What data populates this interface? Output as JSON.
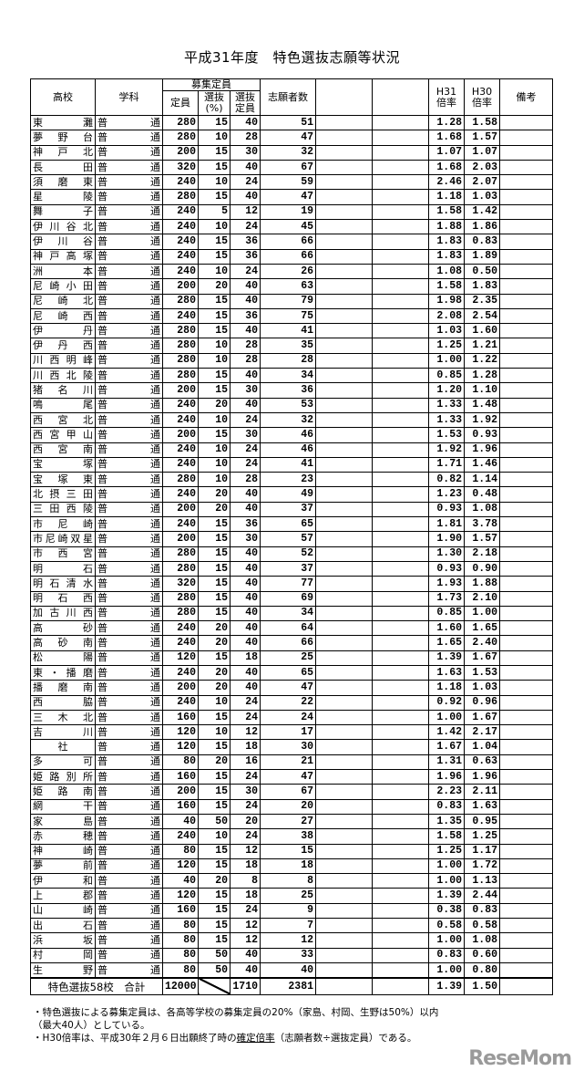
{
  "title": "平成31年度　特色選抜志願等状況",
  "headers": {
    "school": "高校",
    "subject": "学科",
    "recruit_group": "募集定員",
    "capacity": "定員",
    "select_pct": "選抜\n(%)",
    "select_cap": "選抜\n定員",
    "applicants": "志願者数",
    "h31": "H31\n倍率",
    "h30": "H30\n倍率",
    "remarks": "備考"
  },
  "rows": [
    [
      "東灘",
      "普通",
      280,
      15,
      40,
      51,
      "1.28",
      "1.58"
    ],
    [
      "夢野台",
      "普通",
      280,
      10,
      28,
      47,
      "1.68",
      "1.57"
    ],
    [
      "神戸北",
      "普通",
      200,
      15,
      30,
      32,
      "1.07",
      "1.07"
    ],
    [
      "長田",
      "普通",
      320,
      15,
      40,
      67,
      "1.68",
      "2.03"
    ],
    [
      "須磨東",
      "普通",
      240,
      10,
      24,
      59,
      "2.46",
      "2.07"
    ],
    [
      "星陵",
      "普通",
      280,
      15,
      40,
      47,
      "1.18",
      "1.03"
    ],
    [
      "舞子",
      "普通",
      240,
      5,
      12,
      19,
      "1.58",
      "1.42"
    ],
    [
      "伊川谷北",
      "普通",
      240,
      10,
      24,
      45,
      "1.88",
      "1.86"
    ],
    [
      "伊川谷",
      "普通",
      240,
      15,
      36,
      66,
      "1.83",
      "0.83"
    ],
    [
      "神戸高塚",
      "普通",
      240,
      15,
      36,
      66,
      "1.83",
      "1.89"
    ],
    [
      "洲本",
      "普通",
      240,
      10,
      24,
      26,
      "1.08",
      "0.50"
    ],
    [
      "尼崎小田",
      "普通",
      200,
      20,
      40,
      63,
      "1.58",
      "1.83"
    ],
    [
      "尼崎北",
      "普通",
      280,
      15,
      40,
      79,
      "1.98",
      "2.35"
    ],
    [
      "尼崎西",
      "普通",
      240,
      15,
      36,
      75,
      "2.08",
      "2.54"
    ],
    [
      "伊丹",
      "普通",
      280,
      15,
      40,
      41,
      "1.03",
      "1.60"
    ],
    [
      "伊丹西",
      "普通",
      280,
      10,
      28,
      35,
      "1.25",
      "1.21"
    ],
    [
      "川西明峰",
      "普通",
      280,
      10,
      28,
      28,
      "1.00",
      "1.22"
    ],
    [
      "川西北陵",
      "普通",
      280,
      15,
      40,
      34,
      "0.85",
      "1.28"
    ],
    [
      "猪名川",
      "普通",
      200,
      15,
      30,
      36,
      "1.20",
      "1.10"
    ],
    [
      "鳴尾",
      "普通",
      240,
      20,
      40,
      53,
      "1.33",
      "1.48"
    ],
    [
      "西宮北",
      "普通",
      240,
      10,
      24,
      32,
      "1.33",
      "1.92"
    ],
    [
      "西宮甲山",
      "普通",
      200,
      15,
      30,
      46,
      "1.53",
      "0.93"
    ],
    [
      "西宮南",
      "普通",
      240,
      10,
      24,
      46,
      "1.92",
      "1.96"
    ],
    [
      "宝塚",
      "普通",
      240,
      10,
      24,
      41,
      "1.71",
      "1.46"
    ],
    [
      "宝塚東",
      "普通",
      280,
      10,
      28,
      23,
      "0.82",
      "1.14"
    ],
    [
      "北摂三田",
      "普通",
      240,
      20,
      40,
      49,
      "1.23",
      "0.48"
    ],
    [
      "三田西陵",
      "普通",
      200,
      20,
      40,
      37,
      "0.93",
      "1.08"
    ],
    [
      "市尼崎",
      "普通",
      240,
      15,
      36,
      65,
      "1.81",
      "3.78"
    ],
    [
      "市尼崎双星",
      "普通",
      200,
      15,
      30,
      57,
      "1.90",
      "1.57"
    ],
    [
      "市西宮",
      "普通",
      280,
      15,
      40,
      52,
      "1.30",
      "2.18"
    ],
    [
      "明石",
      "普通",
      280,
      15,
      40,
      37,
      "0.93",
      "0.90"
    ],
    [
      "明石清水",
      "普通",
      320,
      15,
      40,
      77,
      "1.93",
      "1.88"
    ],
    [
      "明石西",
      "普通",
      280,
      15,
      40,
      69,
      "1.73",
      "2.10"
    ],
    [
      "加古川西",
      "普通",
      280,
      15,
      40,
      34,
      "0.85",
      "1.00"
    ],
    [
      "高砂",
      "普通",
      240,
      20,
      40,
      64,
      "1.60",
      "1.65"
    ],
    [
      "高砂南",
      "普通",
      240,
      20,
      40,
      66,
      "1.65",
      "2.40"
    ],
    [
      "松陽",
      "普通",
      120,
      15,
      18,
      25,
      "1.39",
      "1.67"
    ],
    [
      "東・播磨",
      "普通",
      240,
      20,
      40,
      65,
      "1.63",
      "1.53"
    ],
    [
      "播磨南",
      "普通",
      200,
      20,
      40,
      47,
      "1.18",
      "1.03"
    ],
    [
      "西脇",
      "普通",
      240,
      10,
      24,
      22,
      "0.92",
      "0.96"
    ],
    [
      "三木北",
      "普通",
      160,
      15,
      24,
      24,
      "1.00",
      "1.67"
    ],
    [
      "吉川",
      "普通",
      120,
      10,
      12,
      17,
      "1.42",
      "2.17"
    ],
    [
      "社",
      "普通",
      120,
      15,
      18,
      30,
      "1.67",
      "1.04"
    ],
    [
      "多可",
      "普通",
      80,
      20,
      16,
      21,
      "1.31",
      "0.63"
    ],
    [
      "姫路別所",
      "普通",
      160,
      15,
      24,
      47,
      "1.96",
      "1.96"
    ],
    [
      "姫路南",
      "普通",
      200,
      15,
      30,
      67,
      "2.23",
      "2.11"
    ],
    [
      "網干",
      "普通",
      160,
      15,
      24,
      20,
      "0.83",
      "1.63"
    ],
    [
      "家島",
      "普通",
      40,
      50,
      20,
      27,
      "1.35",
      "0.95"
    ],
    [
      "赤穂",
      "普通",
      240,
      10,
      24,
      38,
      "1.58",
      "1.25"
    ],
    [
      "神崎",
      "普通",
      80,
      15,
      12,
      15,
      "1.25",
      "1.17"
    ],
    [
      "夢前",
      "普通",
      120,
      15,
      18,
      18,
      "1.00",
      "1.72"
    ],
    [
      "伊和",
      "普通",
      40,
      20,
      8,
      8,
      "1.00",
      "1.13"
    ],
    [
      "上郡",
      "普通",
      120,
      15,
      18,
      25,
      "1.39",
      "2.44"
    ],
    [
      "山崎",
      "普通",
      160,
      15,
      24,
      9,
      "0.38",
      "0.83"
    ],
    [
      "出石",
      "普通",
      80,
      15,
      12,
      7,
      "0.58",
      "0.58"
    ],
    [
      "浜坂",
      "普通",
      80,
      15,
      12,
      12,
      "1.00",
      "1.08"
    ],
    [
      "村岡",
      "普通",
      80,
      50,
      40,
      33,
      "0.83",
      "0.60"
    ],
    [
      "生野",
      "普通",
      80,
      50,
      40,
      40,
      "1.00",
      "0.80"
    ]
  ],
  "total": {
    "label": "特色選抜58校　合計",
    "capacity": "12000",
    "select_cap": "1710",
    "applicants": "2381",
    "h31": "1.39",
    "h30": "1.50"
  },
  "notes": {
    "line1": "・特色選抜による募集定員は、各高等学校の募集定員の20%（家島、村岡、生野は50%）以内",
    "line2": "（最大40人）としている。",
    "line3_pre": "・H30倍率は、平成30年２月６日出願終了時の",
    "line3_underlined": "確定倍率",
    "line3_post": "（志願者数÷選抜定員）である。"
  },
  "watermark": "ReseMom"
}
